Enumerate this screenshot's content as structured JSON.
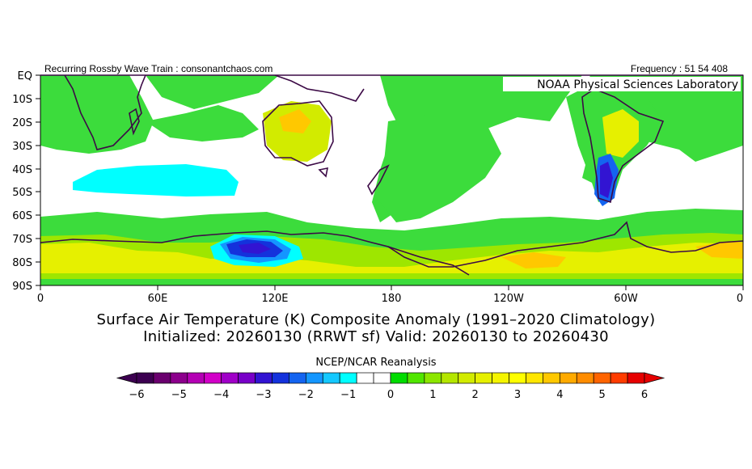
{
  "header": {
    "left_text": "Recurring Rossby Wave Train : consonantchaos.com",
    "right_text": "Frequency : 51 54 408",
    "org_label": "NOAA Physical Sciences Laboratory"
  },
  "map": {
    "lat_labels": [
      "EQ",
      "10S",
      "20S",
      "30S",
      "40S",
      "50S",
      "60S",
      "70S",
      "80S",
      "90S"
    ],
    "lon_labels": [
      "0",
      "60E",
      "120E",
      "180",
      "120W",
      "60W",
      "0"
    ]
  },
  "titles": {
    "line1": "Surface Air Temperature (K) Composite Anomaly (1991–2020 Climatology)",
    "line2": "Initialized: 20260130 (RRWT sf) Valid: 20260130 to 20260430"
  },
  "colorbar": {
    "title": "NCEP/NCAR Reanalysis",
    "tick_labels": [
      "−6",
      "−5",
      "−4",
      "−3",
      "−2",
      "−1",
      "0",
      "1",
      "2",
      "3",
      "4",
      "5",
      "6"
    ],
    "colors": [
      "#3c0050",
      "#6a006e",
      "#8c008c",
      "#b400b4",
      "#d200c8",
      "#a000c8",
      "#7800c8",
      "#3214d2",
      "#1432dc",
      "#1464f0",
      "#1496ff",
      "#14c8ff",
      "#00ffff",
      "#ffffff",
      "#ffffff",
      "#00dc00",
      "#50e600",
      "#8ce600",
      "#b4e600",
      "#d2eb00",
      "#e6f000",
      "#f5f500",
      "#ffff00",
      "#ffe600",
      "#ffc800",
      "#ffaa00",
      "#ff8c00",
      "#ff6400",
      "#ff3c00",
      "#e60000"
    ]
  }
}
